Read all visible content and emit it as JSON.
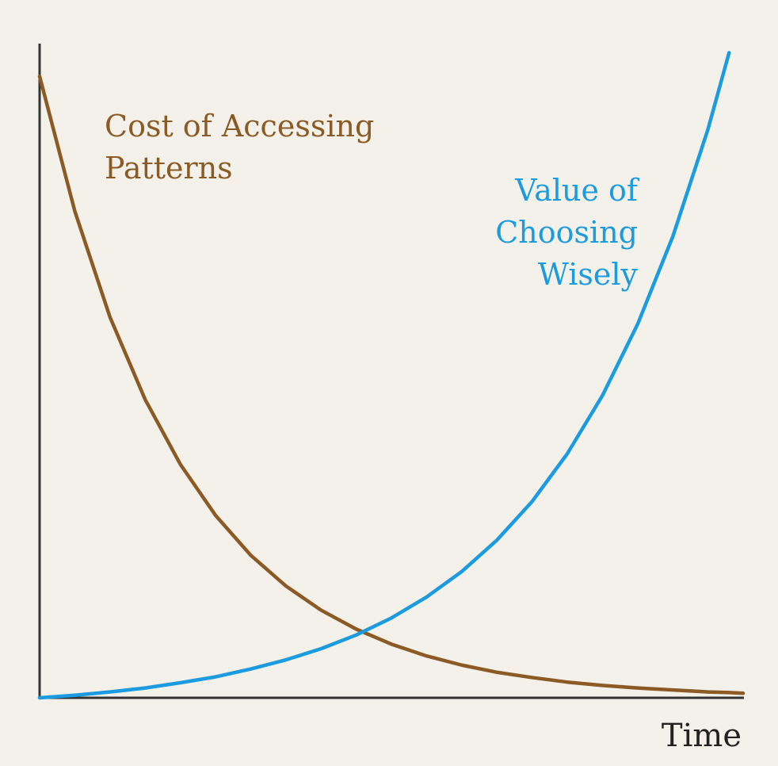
{
  "chart_data": {
    "type": "line",
    "x_label": "Time",
    "x": [
      0,
      5,
      10,
      15,
      20,
      25,
      30,
      35,
      40,
      45,
      50,
      55,
      60,
      65,
      70,
      75,
      80,
      85,
      90,
      95,
      98,
      100
    ],
    "series": [
      {
        "name": "Cost of Accessing Patterns",
        "color": "#8b5a25",
        "values": [
          95,
          74.4,
          58.2,
          45.6,
          35.7,
          27.9,
          21.8,
          17.1,
          13.4,
          10.5,
          8.2,
          6.4,
          5.0,
          3.9,
          3.1,
          2.4,
          1.9,
          1.5,
          1.2,
          0.9,
          0.8,
          0.7
        ]
      },
      {
        "name": "Value of Choosing Wisely",
        "color": "#1b9be0",
        "values": [
          0,
          0.4,
          0.9,
          1.5,
          2.3,
          3.2,
          4.4,
          5.8,
          7.5,
          9.6,
          12.2,
          15.4,
          19.3,
          24.1,
          30.0,
          37.3,
          46.2,
          57.1,
          70.5,
          86.9,
          98.6,
          null
        ]
      }
    ],
    "xlim": [
      0,
      100
    ],
    "ylim": [
      0,
      100
    ]
  }
}
